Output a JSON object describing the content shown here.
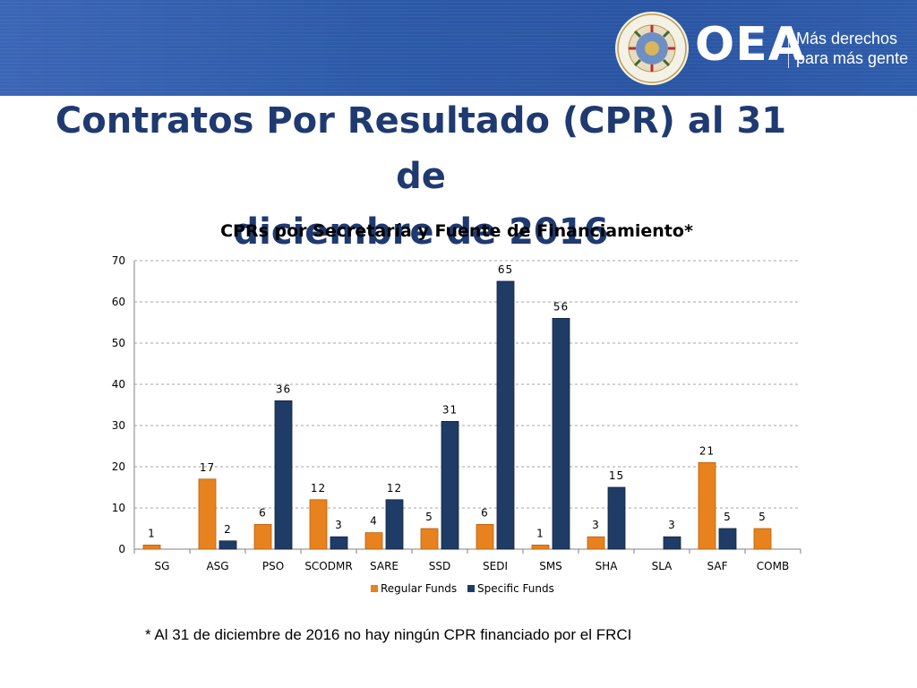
{
  "header": {
    "logo_text": "OEA",
    "slogan_line1": "Más derechos",
    "slogan_line2": "para más gente",
    "seal_text": "ORGANIZACION DE LOS ESTADOS AMERICANOS",
    "banner_color": "#2d5aa8"
  },
  "slide": {
    "title_line1": "Contratos Por Resultado (CPR) al 31 de",
    "title_line2": "diciembre de 2016",
    "footnote": "* Al 31 de diciembre de 2016 no hay ningún CPR financiado por el FRCI"
  },
  "chart_data": {
    "type": "bar",
    "title": "CPRs por Secretaría y Fuente de Financiamiento*",
    "xlabel": "",
    "ylabel": "",
    "ylim": [
      0,
      70
    ],
    "yticks": [
      0,
      10,
      20,
      30,
      40,
      50,
      60,
      70
    ],
    "grid": true,
    "legend_position": "bottom",
    "categories": [
      "SG",
      "ASG",
      "PSO",
      "SCODMR",
      "SARE",
      "SSD",
      "SEDI",
      "SMS",
      "SHA",
      "SLA",
      "SAF",
      "COMB"
    ],
    "series": [
      {
        "name": "Regular Funds",
        "color": "#e8821e",
        "values": [
          1,
          17,
          6,
          12,
          4,
          5,
          6,
          1,
          3,
          null,
          21,
          5
        ]
      },
      {
        "name": "Specific Funds",
        "color": "#1f3c66",
        "values": [
          null,
          2,
          36,
          3,
          12,
          31,
          65,
          56,
          15,
          3,
          5,
          null
        ]
      }
    ]
  }
}
